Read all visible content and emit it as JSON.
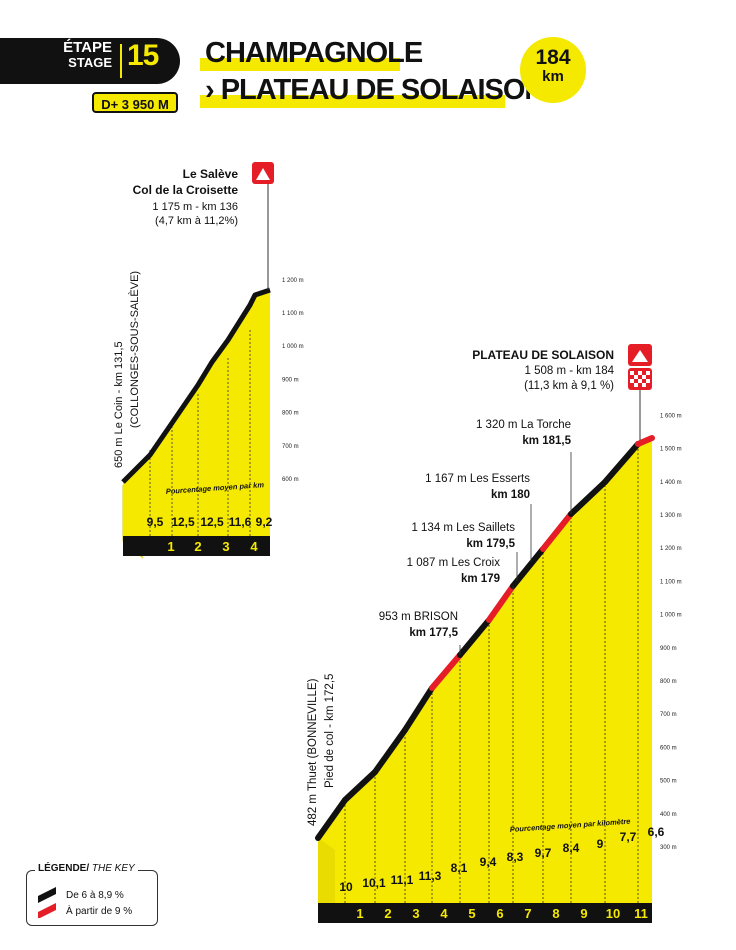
{
  "stage": {
    "label_fr": "ÉTAPE",
    "label_en": "STAGE",
    "number": "15",
    "climbing": "D+ 3 950 M",
    "title_line1": "CHAMPAGNOLE",
    "title_line2": "› PLATEAU DE SOLAISON",
    "distance_value": "184",
    "distance_unit": "km"
  },
  "legend": {
    "title_fr": "LÉGENDE",
    "title_en": "THE KEY",
    "items": [
      "De 6 à 8,9 %",
      "À partir de 9 %"
    ],
    "colors": {
      "moderate": "#111111",
      "steep": "#e41d26"
    }
  },
  "colors": {
    "yellow": "#f5e900",
    "black": "#111111",
    "red": "#e41d26"
  },
  "profiles": [
    {
      "id": "saleve",
      "summit_lines": [
        "Le Salève",
        "Col de la Croisette",
        "1 175 m - km 136",
        "(4,7 km à 11,2%)"
      ],
      "foot_lines": [
        "650 m Le Coin - km 131,5",
        "(COLLONGES-SOUS-SALÈVE)"
      ],
      "caption": "Pourcentage moyen par km",
      "km_labels": [
        "1",
        "2",
        "3",
        "4"
      ],
      "gradients": [
        "9,5",
        "12,5",
        "12,5",
        "11,6",
        "9,2"
      ],
      "ticks": [
        "600 m",
        "700 m",
        "800 m",
        "900 m",
        "1 000 m",
        "1 100 m",
        "1 200 m"
      ]
    },
    {
      "id": "solaison",
      "summit_lines": [
        "PLATEAU DE SOLAISON",
        "1 508 m - km 184",
        "(11,3 km à 9,1 %)"
      ],
      "foot_lines": [
        "482 m Thuet (BONNEVILLE)",
        "Pied de col - km 172,5"
      ],
      "caption": "Pourcentage moyen par kilomètre",
      "km_labels": [
        "1",
        "2",
        "3",
        "4",
        "5",
        "6",
        "7",
        "8",
        "9",
        "10",
        "11"
      ],
      "gradients": [
        "10",
        "10,1",
        "11,1",
        "11,3",
        "8,1",
        "9,4",
        "8,3",
        "9,7",
        "8,4",
        "9",
        "7,7",
        "6,6"
      ],
      "ticks": [
        "300 m",
        "400 m",
        "500 m",
        "600 m",
        "700 m",
        "800 m",
        "900 m",
        "1 000 m",
        "1 100 m",
        "1 200 m",
        "1 300 m",
        "1 400 m",
        "1 500 m",
        "1 600 m"
      ],
      "waypoints": [
        {
          "alt": "953 m BRISON",
          "km": "km 177,5"
        },
        {
          "alt": "1 087 m Les Croix",
          "km": "km 179"
        },
        {
          "alt": "1 134 m Les Saillets",
          "km": "km 179,5"
        },
        {
          "alt": "1 167 m Les Esserts",
          "km": "km 180"
        },
        {
          "alt": "1 320 m La Torche",
          "km": "km 181,5"
        }
      ]
    }
  ]
}
